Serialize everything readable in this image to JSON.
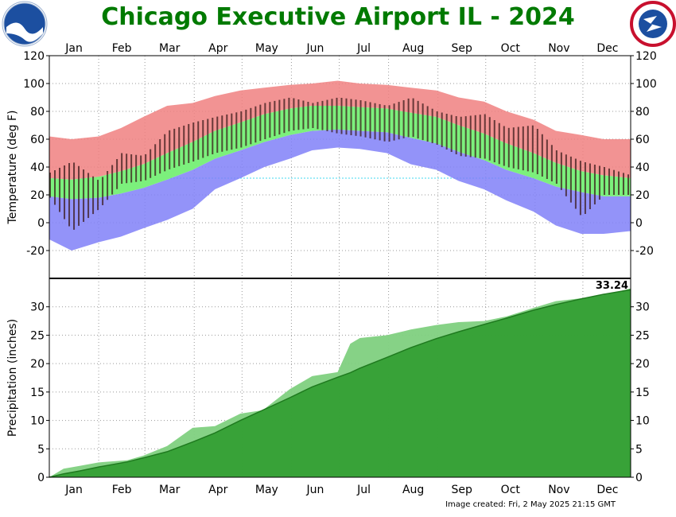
{
  "title": "Chicago Executive Airport IL - 2024",
  "footer": "Image created: Fri, 2 May 2025 21:15 GMT",
  "logos": {
    "left": "NOAA",
    "right": "NATIONAL WEATHER SERVICE"
  },
  "colors": {
    "title": "#007a00",
    "normal_high_band": "#f08080",
    "normal_range": "#7cf07c",
    "normal_low_band": "#8080f8",
    "precip_observed": "#2a9a2a",
    "precip_normal": "#7fd07f",
    "observed_bar": "#3a1a1a"
  },
  "chart_data": [
    {
      "type": "area",
      "name": "temperature",
      "ylabel": "Temperature (deg F)",
      "ylim": [
        -40,
        120
      ],
      "yticks": [
        -20,
        0,
        20,
        40,
        60,
        80,
        100,
        120
      ],
      "months": [
        "Jan",
        "Feb",
        "Mar",
        "Apr",
        "May",
        "Jun",
        "Jul",
        "Aug",
        "Sep",
        "Oct",
        "Nov",
        "Dec"
      ],
      "grid": true,
      "x_days": [
        1,
        15,
        32,
        46,
        60,
        75,
        91,
        105,
        121,
        136,
        152,
        166,
        182,
        196,
        213,
        228,
        244,
        258,
        274,
        288,
        305,
        319,
        335,
        349,
        366
      ],
      "normal_high": [
        32,
        31,
        33,
        37,
        42,
        50,
        58,
        66,
        72,
        78,
        82,
        84,
        84,
        83,
        82,
        79,
        76,
        70,
        64,
        57,
        50,
        43,
        37,
        34,
        32
      ],
      "normal_low": [
        19,
        17,
        18,
        21,
        25,
        31,
        38,
        46,
        52,
        58,
        63,
        66,
        67,
        66,
        65,
        61,
        57,
        51,
        45,
        38,
        32,
        26,
        22,
        19,
        19
      ],
      "record_high": [
        62,
        60,
        62,
        68,
        76,
        84,
        86,
        91,
        95,
        97,
        99,
        100,
        102,
        100,
        99,
        97,
        95,
        90,
        87,
        80,
        74,
        66,
        63,
        60,
        60
      ],
      "record_low": [
        -12,
        -20,
        -14,
        -10,
        -4,
        2,
        10,
        24,
        32,
        40,
        46,
        52,
        54,
        53,
        50,
        42,
        38,
        30,
        24,
        16,
        8,
        -2,
        -8,
        -8,
        -6
      ],
      "observed_high": [
        36,
        44,
        30,
        50,
        48,
        66,
        72,
        76,
        80,
        86,
        90,
        86,
        90,
        88,
        84,
        90,
        80,
        76,
        78,
        68,
        70,
        52,
        44,
        40,
        34
      ],
      "observed_low": [
        18,
        -6,
        10,
        28,
        30,
        38,
        44,
        50,
        54,
        60,
        66,
        68,
        64,
        62,
        58,
        62,
        56,
        48,
        46,
        40,
        36,
        28,
        4,
        20,
        20
      ]
    },
    {
      "type": "area",
      "name": "precipitation",
      "ylabel": "Precipitation (inches)",
      "ylim": [
        0,
        35
      ],
      "yticks": [
        0,
        5,
        10,
        15,
        20,
        25,
        30
      ],
      "months": [
        "Jan",
        "Feb",
        "Mar",
        "Apr",
        "May",
        "Jun",
        "Jul",
        "Aug",
        "Sep",
        "Oct",
        "Nov",
        "Dec"
      ],
      "grid": true,
      "annotation": "33.24",
      "x_days": [
        1,
        10,
        20,
        32,
        50,
        60,
        75,
        91,
        105,
        121,
        135,
        152,
        166,
        182,
        190,
        196,
        213,
        228,
        244,
        258,
        274,
        288,
        305,
        319,
        335,
        349,
        366
      ],
      "observed": [
        0.0,
        1.5,
        2.0,
        2.6,
        3.0,
        3.8,
        5.5,
        8.7,
        9.0,
        11.2,
        11.8,
        15.5,
        17.8,
        18.5,
        23.5,
        24.5,
        25.0,
        26.0,
        26.8,
        27.3,
        27.5,
        28.3,
        29.8,
        31.0,
        31.5,
        32.0,
        33.24
      ],
      "normal": [
        0.0,
        0.6,
        1.1,
        1.8,
        2.7,
        3.4,
        4.5,
        6.2,
        7.8,
        10.0,
        11.8,
        14.0,
        15.9,
        17.6,
        18.4,
        19.2,
        21.1,
        22.8,
        24.4,
        25.6,
        26.9,
        28.0,
        29.4,
        30.4,
        31.4,
        32.2,
        33.0
      ]
    }
  ]
}
